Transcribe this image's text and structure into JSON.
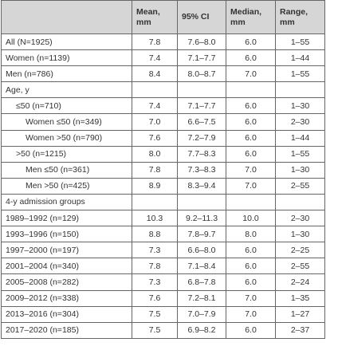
{
  "table": {
    "header": [
      "Mean, mm",
      "95% CI",
      "Median, mm",
      "Range, mm"
    ],
    "rows": [
      [
        "All (N=1925)",
        "7.8",
        "7.6–8.0",
        "6.0",
        "1–55"
      ],
      [
        "Women (n=1139)",
        "7.4",
        "7.1–7.7",
        "6.0",
        "1–44"
      ],
      [
        "Men (n=786)",
        "8.4",
        "8.0–8.7",
        "7.0",
        "1–55"
      ],
      [
        "Age, y"
      ],
      [
        "≤50 (n=710)",
        "7.4",
        "7.1–7.7",
        "6.0",
        "1–30"
      ],
      [
        "Women ≤50 (n=349)",
        "7.0",
        "6.6–7.5",
        "6.0",
        "2–30"
      ],
      [
        "Women >50 (n=790)",
        "7.6",
        "7.2–7.9",
        "6.0",
        "1–44"
      ],
      [
        ">50 (n=1215)",
        "8.0",
        "7.7–8.3",
        "6.0",
        "1–55"
      ],
      [
        "Men ≤50 (n=361)",
        "7.8",
        "7.3–8.3",
        "7.0",
        "1–30"
      ],
      [
        "Men >50 (n=425)",
        "8.9",
        "8.3–9.4",
        "7.0",
        "2–55"
      ],
      [
        "4-y admission groups"
      ],
      [
        "1989–1992 (n=129)",
        "10.3",
        "9.2–11.3",
        "10.0",
        "2–30"
      ],
      [
        "1993–1996 (n=150)",
        "8.8",
        "7.8–9.7",
        "8.0",
        "1–30"
      ],
      [
        "1997–2000 (n=197)",
        "7.3",
        "6.6–8.0",
        "6.0",
        "2–25"
      ],
      [
        "2001–2004 (n=340)",
        "7.8",
        "7.1–8.4",
        "6.0",
        "2–55"
      ],
      [
        "2005–2008 (n=282)",
        "7.3",
        "6.8–7.8",
        "6.0",
        "2–24"
      ],
      [
        "2009–2012 (n=338)",
        "7.6",
        "7.2–8.1",
        "7.0",
        "1–35"
      ],
      [
        "2013–2016 (n=304)",
        "7.5",
        "7.0–7.9",
        "7.0",
        "1–27"
      ],
      [
        "2017–2020 (n=185)",
        "7.5",
        "6.9–8.2",
        "6.0",
        "2–37"
      ]
    ]
  }
}
